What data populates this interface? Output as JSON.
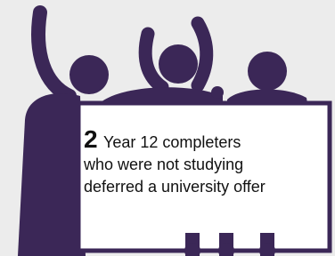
{
  "sign": {
    "number": 2,
    "lines": [
      "Year 12 completers",
      "who were not studying",
      "deferred a university offer"
    ]
  }
}
